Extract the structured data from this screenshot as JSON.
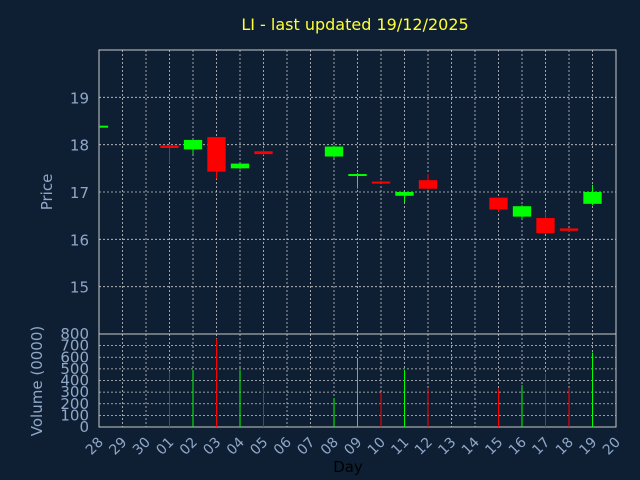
{
  "chart_data": {
    "type": "candlestick",
    "title": "LI - last updated 19/12/2025",
    "xlabel": "Day",
    "price_panel": {
      "ylabel": "Price",
      "ylim": [
        14,
        20
      ],
      "yticks": [
        15,
        16,
        17,
        18,
        19
      ],
      "grid": true
    },
    "volume_panel": {
      "ylabel": "Volume (0000)",
      "ylim": [
        0,
        800
      ],
      "yticks": [
        0,
        100,
        200,
        300,
        400,
        500,
        600,
        700,
        800
      ],
      "grid": true
    },
    "x_tick_labels": [
      "28",
      "29",
      "30",
      "01",
      "02",
      "03",
      "04",
      "05",
      "06",
      "07",
      "08",
      "09",
      "10",
      "11",
      "12",
      "13",
      "14",
      "15",
      "16",
      "17",
      "18",
      "19",
      "20"
    ],
    "colors": {
      "up": "#00ff00",
      "down": "#ff0000"
    },
    "candles": [
      {
        "day": "28",
        "open": 18.38,
        "close": 18.38,
        "high": 18.38,
        "low": 18.38,
        "volume": 0
      },
      {
        "day": "01",
        "open": 17.98,
        "close": 17.93,
        "high": 18.0,
        "low": 17.6,
        "volume": 480
      },
      {
        "day": "02",
        "open": 17.9,
        "close": 18.1,
        "high": 18.12,
        "low": 17.8,
        "volume": 490
      },
      {
        "day": "03",
        "open": 18.16,
        "close": 17.43,
        "high": 18.16,
        "low": 17.28,
        "volume": 760
      },
      {
        "day": "04",
        "open": 17.5,
        "close": 17.6,
        "high": 17.62,
        "low": 17.48,
        "volume": 490
      },
      {
        "day": "05",
        "open": 17.86,
        "close": 17.8,
        "high": 17.9,
        "low": 17.78,
        "volume": 360
      },
      {
        "day": "08",
        "open": 17.75,
        "close": 17.96,
        "high": 17.98,
        "low": 17.72,
        "volume": 250
      },
      {
        "day": "09",
        "open": 17.36,
        "close": 17.38,
        "high": 17.4,
        "low": 17.07,
        "volume": 580
      },
      {
        "day": "10",
        "open": 17.22,
        "close": 17.21,
        "high": 17.24,
        "low": 17.2,
        "volume": 300
      },
      {
        "day": "11",
        "open": 16.92,
        "close": 17.0,
        "high": 17.02,
        "low": 16.78,
        "volume": 490
      },
      {
        "day": "12",
        "open": 17.25,
        "close": 17.07,
        "high": 17.38,
        "low": 17.05,
        "volume": 330
      },
      {
        "day": "15",
        "open": 16.88,
        "close": 16.63,
        "high": 16.88,
        "low": 16.58,
        "volume": 330
      },
      {
        "day": "16",
        "open": 16.48,
        "close": 16.7,
        "high": 16.72,
        "low": 16.42,
        "volume": 360
      },
      {
        "day": "17",
        "open": 16.45,
        "close": 16.13,
        "high": 16.58,
        "low": 16.12,
        "volume": 460
      },
      {
        "day": "18",
        "open": 16.23,
        "close": 16.18,
        "high": 16.24,
        "low": 16.16,
        "volume": 330
      },
      {
        "day": "19",
        "open": 16.75,
        "close": 17.0,
        "high": 17.15,
        "low": 16.72,
        "volume": 640
      }
    ]
  }
}
